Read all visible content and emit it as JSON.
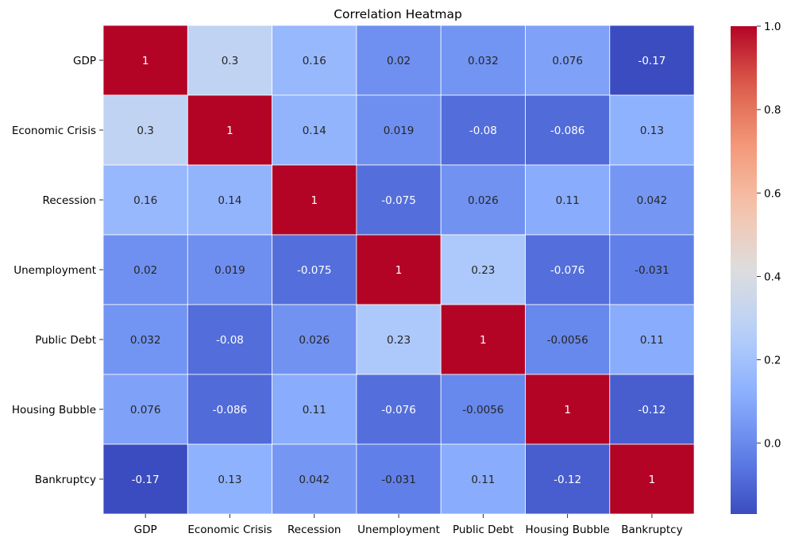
{
  "chart_data": {
    "type": "heatmap",
    "title": "Correlation Heatmap",
    "rows": [
      "GDP",
      "Economic Crisis",
      "Recession",
      "Unemployment",
      "Public Debt",
      "Housing Bubble",
      "Bankruptcy"
    ],
    "columns": [
      "GDP",
      "Economic Crisis",
      "Recession",
      "Unemployment",
      "Public Debt",
      "Housing Bubble",
      "Bankruptcy"
    ],
    "values": [
      [
        1,
        0.3,
        0.16,
        0.02,
        0.032,
        0.076,
        -0.17
      ],
      [
        0.3,
        1,
        0.14,
        0.019,
        -0.08,
        -0.086,
        0.13
      ],
      [
        0.16,
        0.14,
        1,
        -0.075,
        0.026,
        0.11,
        0.042
      ],
      [
        0.02,
        0.019,
        -0.075,
        1,
        0.23,
        -0.076,
        -0.031
      ],
      [
        0.032,
        -0.08,
        0.026,
        0.23,
        1,
        -0.0056,
        0.11
      ],
      [
        0.076,
        -0.086,
        0.11,
        -0.076,
        -0.0056,
        1,
        -0.12
      ],
      [
        -0.17,
        0.13,
        0.042,
        -0.031,
        0.11,
        -0.12,
        1
      ]
    ],
    "annotations": [
      [
        "1",
        "0.3",
        "0.16",
        "0.02",
        "0.032",
        "0.076",
        "-0.17"
      ],
      [
        "0.3",
        "1",
        "0.14",
        "0.019",
        "-0.08",
        "-0.086",
        "0.13"
      ],
      [
        "0.16",
        "0.14",
        "1",
        "-0.075",
        "0.026",
        "0.11",
        "0.042"
      ],
      [
        "0.02",
        "0.019",
        "-0.075",
        "1",
        "0.23",
        "-0.076",
        "-0.031"
      ],
      [
        "0.032",
        "-0.08",
        "0.026",
        "0.23",
        "1",
        "-0.0056",
        "0.11"
      ],
      [
        "0.076",
        "-0.086",
        "0.11",
        "-0.076",
        "-0.0056",
        "1",
        "-0.12"
      ],
      [
        "-0.17",
        "0.13",
        "0.042",
        "-0.031",
        "0.11",
        "-0.12",
        "1"
      ]
    ],
    "colormap": "coolwarm",
    "vmin": -0.17,
    "vmax": 1,
    "colorbar_ticks": [
      0.0,
      0.2,
      0.4,
      0.6,
      0.8,
      1.0
    ],
    "colorbar_tick_labels": [
      "0.0",
      "0.2",
      "0.4",
      "0.6",
      "0.8",
      "1.0"
    ],
    "grid": true,
    "legend": "colorbar-right"
  }
}
